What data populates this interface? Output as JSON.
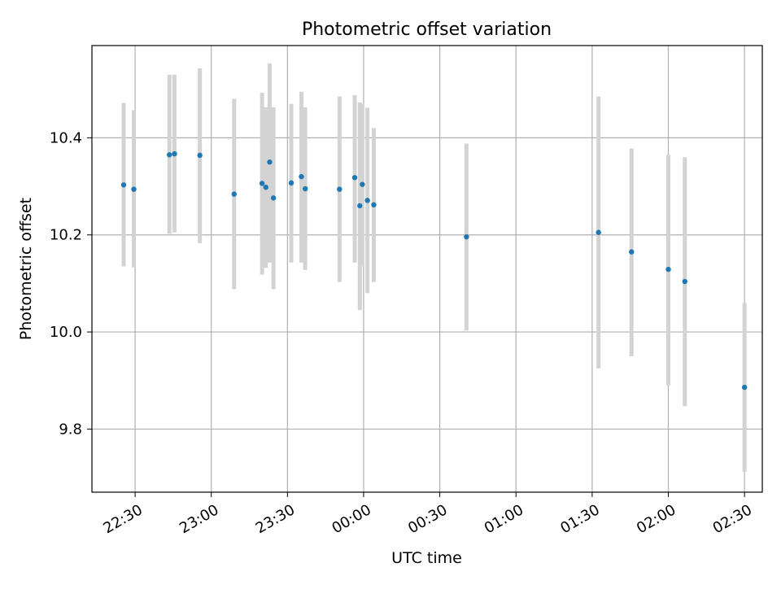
{
  "chart_data": {
    "type": "scatter",
    "title": "Photometric offset variation",
    "xlabel": "UTC time",
    "ylabel": "Photometric offset",
    "x_range": [
      "22:13:00",
      "02:37:00"
    ],
    "y_range": [
      9.67,
      10.59
    ],
    "x_ticks": [
      "22:30",
      "23:00",
      "23:30",
      "00:00",
      "00:30",
      "01:00",
      "01:30",
      "02:00",
      "02:30"
    ],
    "y_ticks": [
      "9.8",
      "10.0",
      "10.2",
      "10.4"
    ],
    "grid": true,
    "marker_color": "#1f77b4",
    "errorbar_color": "#d3d3d3",
    "points": [
      {
        "t": "22:25:30",
        "y": 10.303,
        "lo": 10.135,
        "hi": 10.472
      },
      {
        "t": "22:29:30",
        "y": 10.294,
        "lo": 10.133,
        "hi": 10.457
      },
      {
        "t": "22:43:30",
        "y": 10.365,
        "lo": 10.202,
        "hi": 10.53
      },
      {
        "t": "22:45:30",
        "y": 10.367,
        "lo": 10.205,
        "hi": 10.53
      },
      {
        "t": "22:55:30",
        "y": 10.364,
        "lo": 10.183,
        "hi": 10.543
      },
      {
        "t": "23:09:00",
        "y": 10.284,
        "lo": 10.088,
        "hi": 10.48
      },
      {
        "t": "23:20:00",
        "y": 10.306,
        "lo": 10.118,
        "hi": 10.493
      },
      {
        "t": "23:21:30",
        "y": 10.298,
        "lo": 10.132,
        "hi": 10.463
      },
      {
        "t": "23:23:00",
        "y": 10.35,
        "lo": 10.143,
        "hi": 10.553
      },
      {
        "t": "23:24:30",
        "y": 10.276,
        "lo": 10.088,
        "hi": 10.463
      },
      {
        "t": "23:31:30",
        "y": 10.307,
        "lo": 10.143,
        "hi": 10.47
      },
      {
        "t": "23:35:30",
        "y": 10.32,
        "lo": 10.143,
        "hi": 10.495
      },
      {
        "t": "23:37:00",
        "y": 10.295,
        "lo": 10.128,
        "hi": 10.463
      },
      {
        "t": "23:50:30",
        "y": 10.294,
        "lo": 10.103,
        "hi": 10.485
      },
      {
        "t": "23:56:30",
        "y": 10.318,
        "lo": 10.143,
        "hi": 10.488
      },
      {
        "t": "23:58:30",
        "y": 10.26,
        "lo": 10.045,
        "hi": 10.473
      },
      {
        "t": "23:59:30",
        "y": 10.304,
        "lo": 10.135,
        "hi": 10.47
      },
      {
        "t": "00:01:30",
        "y": 10.271,
        "lo": 10.08,
        "hi": 10.462
      },
      {
        "t": "00:04:00",
        "y": 10.262,
        "lo": 10.103,
        "hi": 10.42
      },
      {
        "t": "00:40:30",
        "y": 10.196,
        "lo": 10.003,
        "hi": 10.388
      },
      {
        "t": "01:32:30",
        "y": 10.205,
        "lo": 9.925,
        "hi": 10.485
      },
      {
        "t": "01:45:30",
        "y": 10.165,
        "lo": 9.95,
        "hi": 10.378
      },
      {
        "t": "02:00:00",
        "y": 10.129,
        "lo": 9.89,
        "hi": 10.365
      },
      {
        "t": "02:06:30",
        "y": 10.104,
        "lo": 9.847,
        "hi": 10.36
      },
      {
        "t": "02:30:00",
        "y": 9.886,
        "lo": 9.712,
        "hi": 10.06
      }
    ]
  }
}
